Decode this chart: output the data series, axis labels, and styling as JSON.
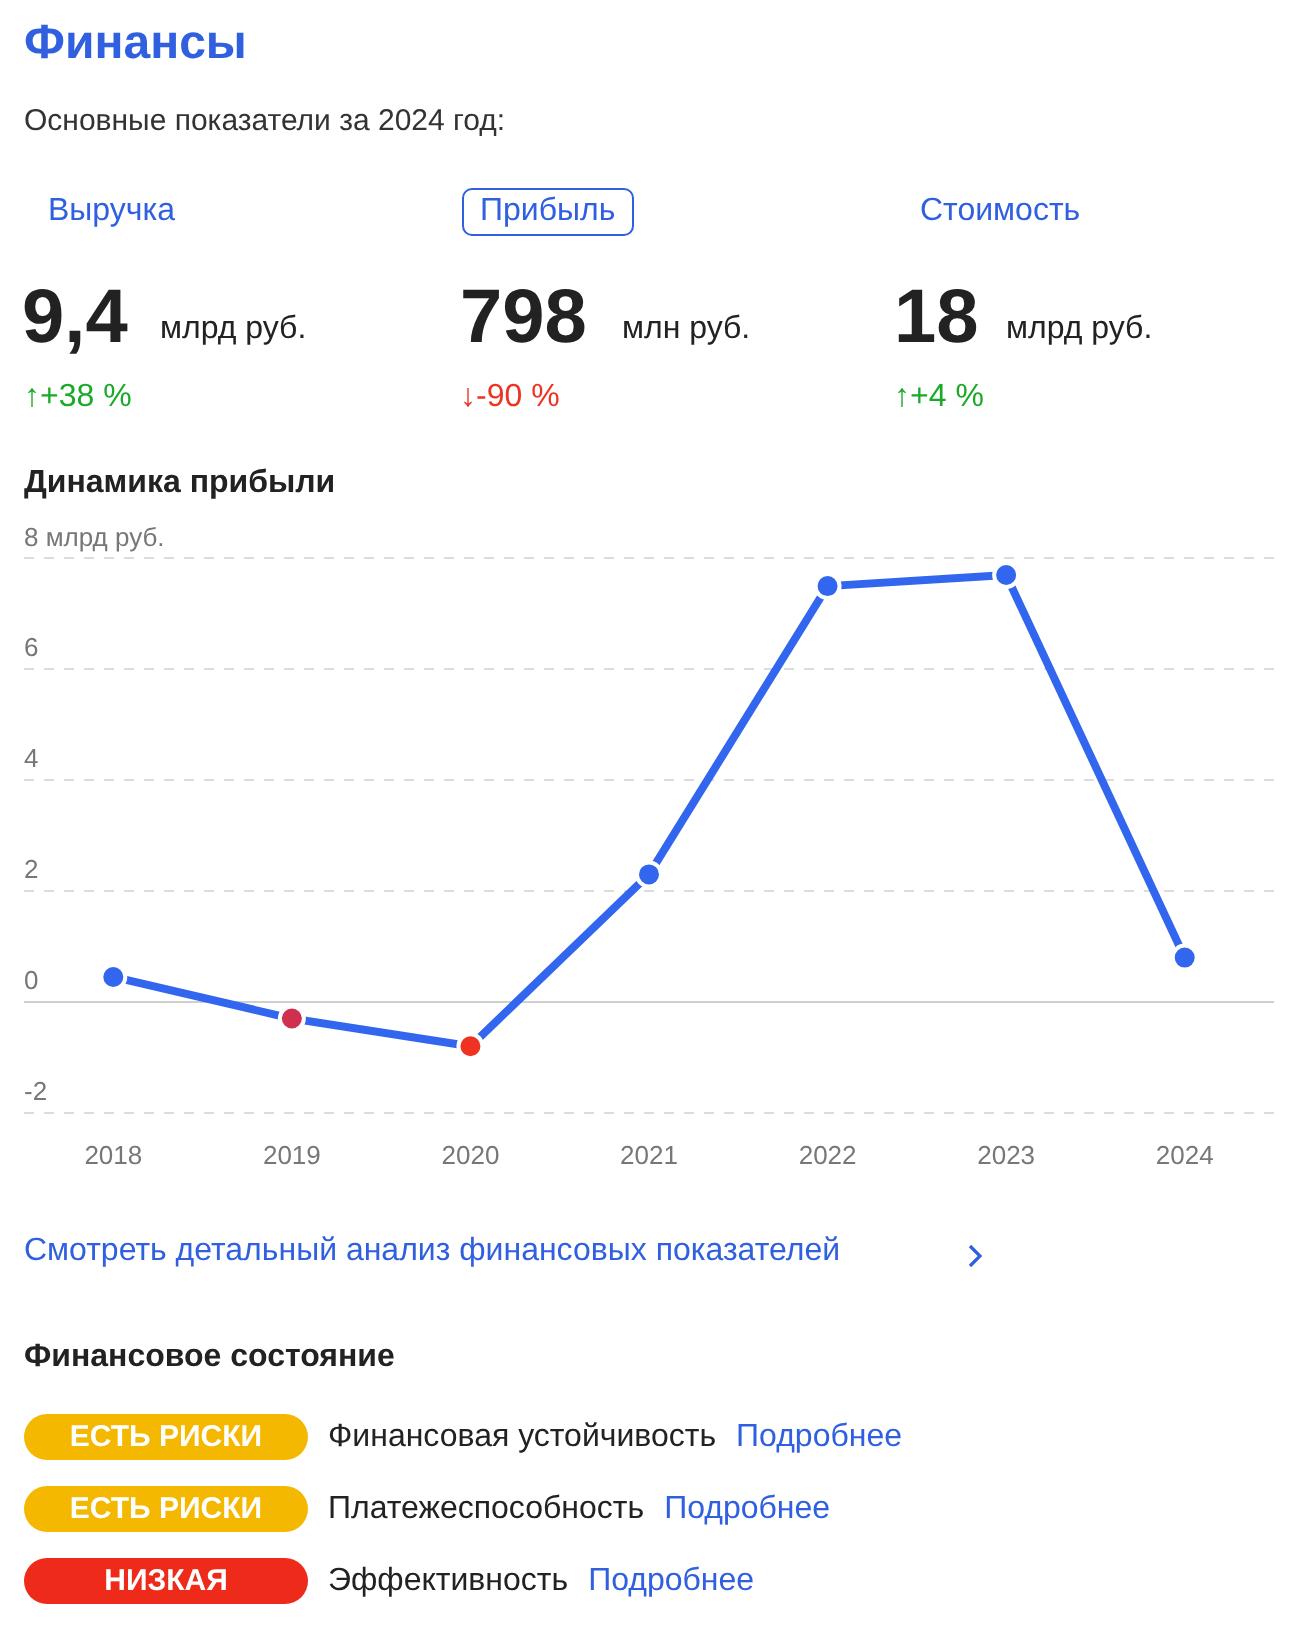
{
  "chart_data": {
    "type": "line",
    "title": "Динамика прибыли",
    "categories": [
      "2018",
      "2019",
      "2020",
      "2021",
      "2022",
      "2023",
      "2024"
    ],
    "series": [
      {
        "color": "#3366ee",
        "colors": [
          "#3366ee",
          "#d03050",
          "#ee3322",
          "#3366ee",
          "#3366ee",
          "#3366ee",
          "#3366ee"
        ],
        "values": [
          0.45,
          -0.3,
          -0.8,
          2.3,
          7.5,
          7.7,
          0.8
        ]
      }
    ],
    "ylim": [
      -2,
      8
    ],
    "yticks": [
      -2,
      0,
      2,
      4,
      6,
      {
        "value": 8,
        "label": "8 млрд руб."
      }
    ],
    "grid": "y",
    "legend": false,
    "marker": "circle",
    "line_style": "solid",
    "annotations": [
      "Финансы",
      "Основные показатели за 2024 год:",
      "Выручка",
      "Прибыль",
      "Стоимость",
      "9,4",
      "млрд руб.",
      "798",
      "млн руб.",
      "18",
      "млрд руб.",
      "↑+38 %",
      "↓-90 %",
      "↑+4 %",
      "Смотреть детальный анализ финансовых показателей",
      "Финансовое состояние",
      "ЕСТЬ РИСКИ",
      "Финансовая устойчивость",
      "Подробнее",
      "ЕСТЬ РИСКИ",
      "Платежеспособность",
      "Подробнее",
      "НИЗКАЯ",
      "Эффективность",
      "Подробнее"
    ]
  }
}
